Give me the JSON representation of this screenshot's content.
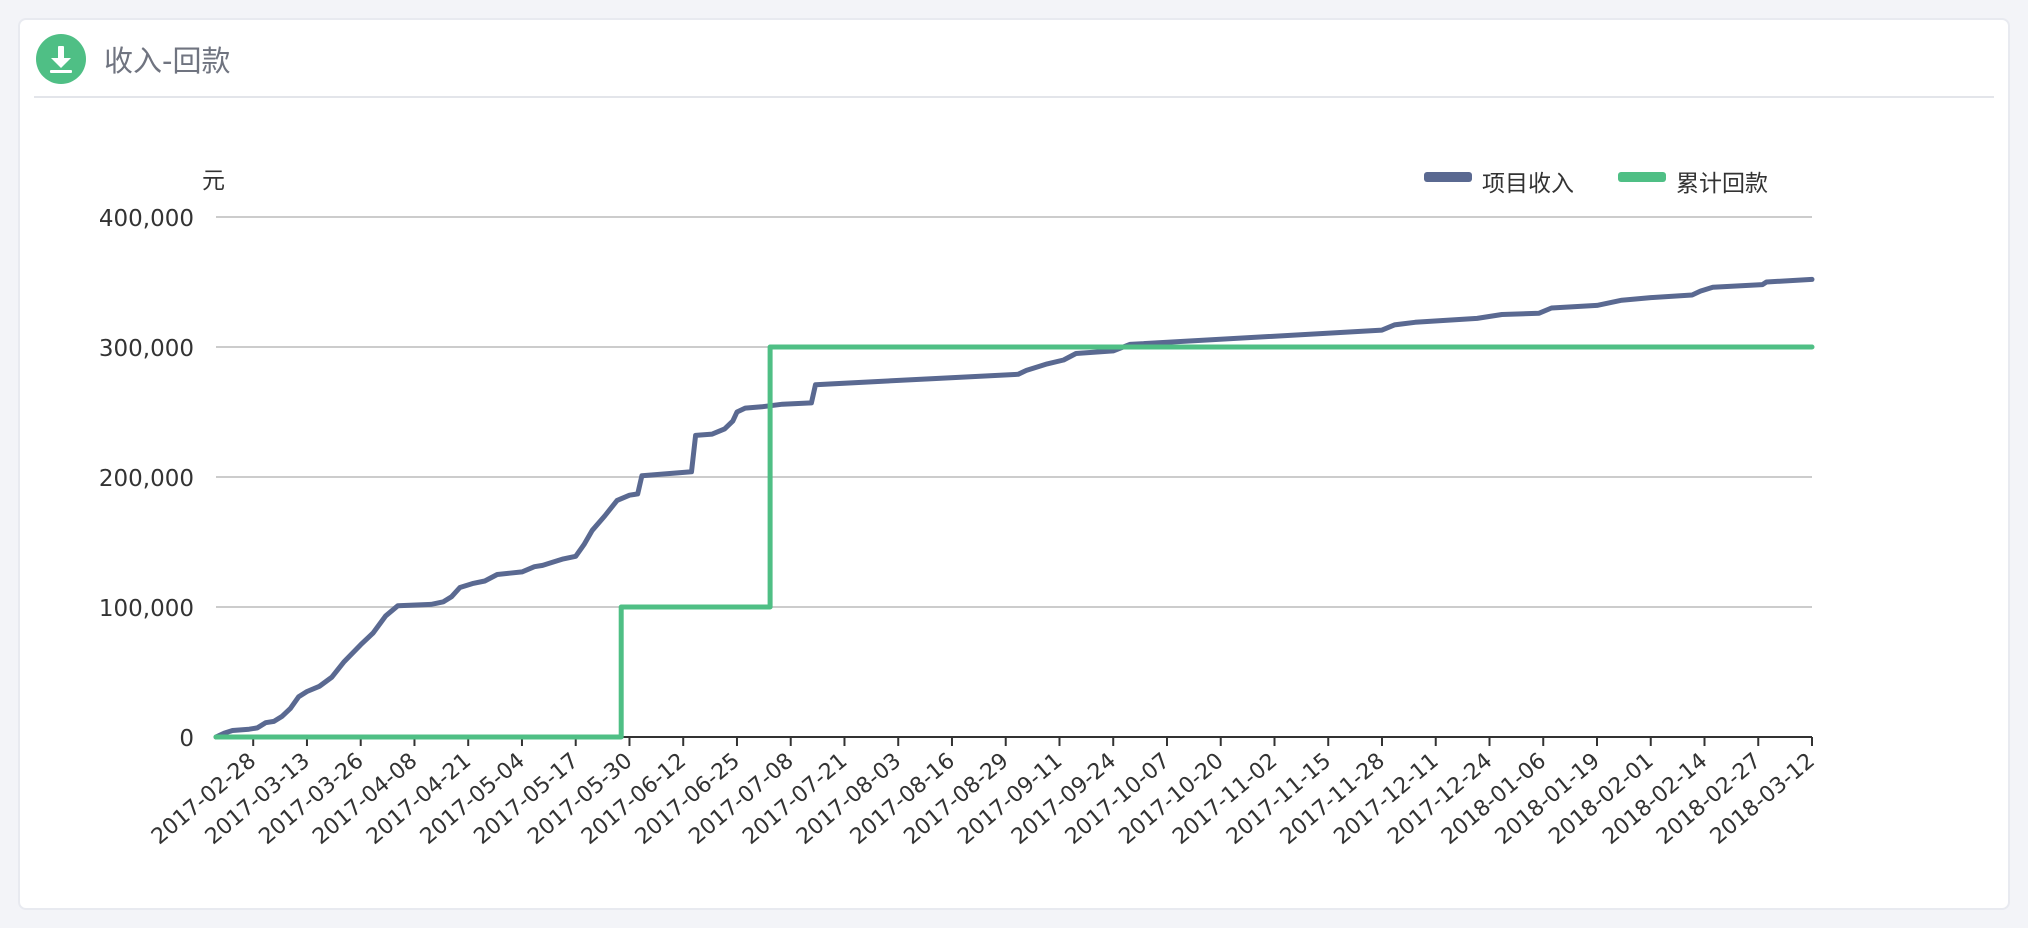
{
  "card": {
    "title": "收入-回款",
    "icon": "download-icon",
    "accent_color": "#4fbf85"
  },
  "chart_data": {
    "type": "line",
    "title": "",
    "xlabel": "",
    "ylabel": "元",
    "ylim": [
      0,
      400000
    ],
    "yticks": [
      0,
      100000,
      200000,
      300000,
      400000
    ],
    "ytick_labels": [
      "0",
      "100,000",
      "200,000",
      "300,000",
      "400,000"
    ],
    "xlim": [
      "2017-02-19",
      "2018-03-12"
    ],
    "xtick_labels": [
      "2017-02-28",
      "2017-03-13",
      "2017-03-26",
      "2017-04-08",
      "2017-04-21",
      "2017-05-04",
      "2017-05-17",
      "2017-05-30",
      "2017-06-12",
      "2017-06-25",
      "2017-07-08",
      "2017-07-21",
      "2017-08-03",
      "2017-08-16",
      "2017-08-29",
      "2017-09-11",
      "2017-09-24",
      "2017-10-07",
      "2017-10-20",
      "2017-11-02",
      "2017-11-15",
      "2017-11-28",
      "2017-12-11",
      "2017-12-24",
      "2018-01-06",
      "2018-01-19",
      "2018-02-01",
      "2018-02-14",
      "2018-02-27",
      "2018-03-12"
    ],
    "grid": true,
    "legend_position": "top-right",
    "series": [
      {
        "name": "项目收入",
        "color": "#5a6991",
        "step": false,
        "points": [
          [
            "2017-02-19",
            0
          ],
          [
            "2017-02-21",
            3000
          ],
          [
            "2017-02-23",
            5000
          ],
          [
            "2017-02-27",
            6000
          ],
          [
            "2017-03-01",
            7000
          ],
          [
            "2017-03-03",
            11000
          ],
          [
            "2017-03-05",
            12000
          ],
          [
            "2017-03-07",
            16000
          ],
          [
            "2017-03-09",
            22000
          ],
          [
            "2017-03-11",
            31000
          ],
          [
            "2017-03-13",
            35000
          ],
          [
            "2017-03-16",
            39000
          ],
          [
            "2017-03-19",
            46000
          ],
          [
            "2017-03-22",
            58000
          ],
          [
            "2017-03-26",
            71000
          ],
          [
            "2017-03-29",
            80000
          ],
          [
            "2017-04-01",
            93000
          ],
          [
            "2017-04-04",
            101000
          ],
          [
            "2017-04-12",
            102000
          ],
          [
            "2017-04-15",
            104000
          ],
          [
            "2017-04-17",
            108000
          ],
          [
            "2017-04-19",
            115000
          ],
          [
            "2017-04-22",
            118000
          ],
          [
            "2017-04-25",
            120000
          ],
          [
            "2017-04-28",
            125000
          ],
          [
            "2017-05-01",
            126000
          ],
          [
            "2017-05-04",
            127000
          ],
          [
            "2017-05-07",
            131000
          ],
          [
            "2017-05-09",
            132000
          ],
          [
            "2017-05-11",
            134000
          ],
          [
            "2017-05-14",
            137000
          ],
          [
            "2017-05-17",
            139000
          ],
          [
            "2017-05-19",
            148000
          ],
          [
            "2017-05-21",
            159000
          ],
          [
            "2017-05-24",
            170000
          ],
          [
            "2017-05-27",
            182000
          ],
          [
            "2017-05-30",
            186000
          ],
          [
            "2017-06-01",
            187000
          ],
          [
            "2017-06-02",
            201000
          ],
          [
            "2017-06-14",
            204000
          ],
          [
            "2017-06-15",
            232000
          ],
          [
            "2017-06-19",
            233000
          ],
          [
            "2017-06-22",
            237000
          ],
          [
            "2017-06-24",
            243000
          ],
          [
            "2017-06-25",
            250000
          ],
          [
            "2017-06-27",
            253000
          ],
          [
            "2017-07-01",
            254000
          ],
          [
            "2017-07-06",
            256000
          ],
          [
            "2017-07-13",
            257000
          ],
          [
            "2017-07-14",
            271000
          ],
          [
            "2017-09-01",
            279000
          ],
          [
            "2017-09-03",
            282000
          ],
          [
            "2017-09-06",
            285000
          ],
          [
            "2017-09-08",
            287000
          ],
          [
            "2017-09-12",
            290000
          ],
          [
            "2017-09-15",
            295000
          ],
          [
            "2017-09-24",
            297000
          ],
          [
            "2017-09-28",
            302000
          ],
          [
            "2017-11-28",
            313000
          ],
          [
            "2017-12-01",
            317000
          ],
          [
            "2017-12-06",
            319000
          ],
          [
            "2017-12-21",
            322000
          ],
          [
            "2017-12-27",
            325000
          ],
          [
            "2018-01-05",
            326000
          ],
          [
            "2018-01-08",
            330000
          ],
          [
            "2018-01-19",
            332000
          ],
          [
            "2018-01-22",
            334000
          ],
          [
            "2018-01-25",
            336000
          ],
          [
            "2018-02-01",
            338000
          ],
          [
            "2018-02-11",
            340000
          ],
          [
            "2018-02-13",
            343000
          ],
          [
            "2018-02-16",
            346000
          ],
          [
            "2018-02-28",
            348000
          ],
          [
            "2018-03-01",
            350000
          ],
          [
            "2018-03-12",
            352000
          ]
        ]
      },
      {
        "name": "累计回款",
        "color": "#4fbf85",
        "step": true,
        "points": [
          [
            "2017-02-19",
            0
          ],
          [
            "2017-05-28",
            0
          ],
          [
            "2017-05-28",
            100000
          ],
          [
            "2017-07-03",
            100000
          ],
          [
            "2017-07-03",
            300000
          ],
          [
            "2018-03-12",
            300000
          ]
        ]
      }
    ]
  }
}
